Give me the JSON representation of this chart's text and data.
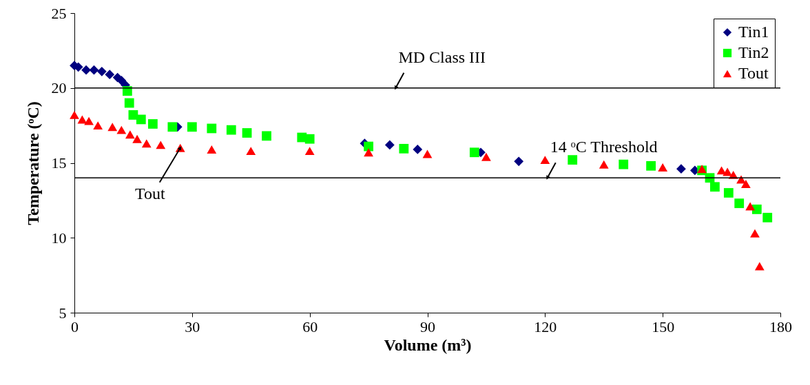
{
  "chart_data": {
    "type": "scatter",
    "xlabel": "Volume (m³)",
    "ylabel": "Temperature (ᵒC)",
    "xlim": [
      0,
      180
    ],
    "ylim": [
      5,
      25
    ],
    "xticks": [
      0,
      30,
      60,
      90,
      120,
      150,
      180
    ],
    "yticks": [
      5,
      10,
      15,
      20,
      25
    ],
    "grid": false,
    "legend": "top right",
    "series": [
      {
        "name": "Tin1",
        "color": "#000080",
        "marker": "diamond",
        "x": [
          0,
          1,
          3,
          5,
          7,
          9,
          11,
          12,
          13,
          26.3,
          74,
          80.4,
          87.5,
          103.6,
          113.3,
          154.7,
          158.2
        ],
        "values": [
          21.5,
          21.4,
          21.2,
          21.2,
          21.1,
          20.9,
          20.7,
          20.5,
          20.2,
          17.4,
          16.3,
          16.2,
          15.9,
          15.7,
          15.1,
          14.6,
          14.5
        ]
      },
      {
        "name": "Tin2",
        "color": "#00ff00",
        "marker": "square",
        "x": [
          13.5,
          14,
          15,
          17,
          20,
          25,
          30,
          35,
          40,
          44,
          49,
          58,
          60,
          75,
          84,
          102,
          127,
          140,
          147,
          160,
          162,
          163.3,
          166.8,
          169.5,
          174,
          176.7
        ],
        "values": [
          19.8,
          19,
          18.2,
          17.9,
          17.6,
          17.4,
          17.4,
          17.3,
          17.2,
          17,
          16.8,
          16.7,
          16.6,
          16.1,
          15.95,
          15.7,
          15.2,
          14.9,
          14.8,
          14.5,
          14,
          13.4,
          13,
          12.3,
          11.9,
          11.35
        ]
      },
      {
        "name": "Tout",
        "color": "#ff0000",
        "marker": "triangle",
        "x": [
          0,
          2,
          3.7,
          6,
          9.7,
          12,
          14.2,
          16,
          18.4,
          22,
          27,
          35,
          45,
          60,
          75,
          90,
          105,
          120,
          135,
          150,
          160,
          165,
          166.5,
          168,
          170,
          171.2,
          172.3,
          173.5,
          174.7
        ],
        "values": [
          18.2,
          17.9,
          17.8,
          17.5,
          17.4,
          17.2,
          16.9,
          16.6,
          16.3,
          16.2,
          16,
          15.9,
          15.8,
          15.8,
          15.7,
          15.6,
          15.4,
          15.2,
          14.9,
          14.7,
          14.6,
          14.5,
          14.4,
          14.2,
          13.9,
          13.6,
          12.1,
          10.3,
          8.1
        ]
      }
    ],
    "ref_lines": [
      {
        "axis": "y",
        "value": 20,
        "label": "MD Class III",
        "color": "#000000"
      },
      {
        "axis": "y",
        "value": 14,
        "label": "14 ᵒC Threshold",
        "color": "#000000"
      }
    ],
    "annotations": [
      {
        "text": "Tout",
        "x": 27,
        "y": 16
      }
    ]
  }
}
